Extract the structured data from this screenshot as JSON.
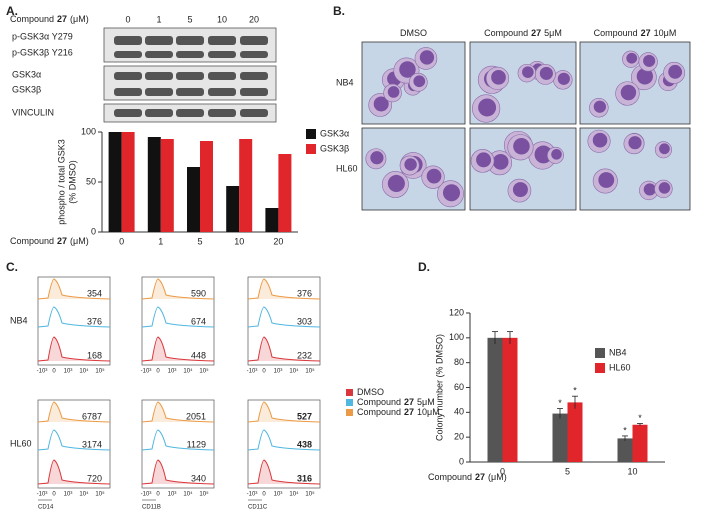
{
  "panel_labels": [
    "A.",
    "B.",
    "C.",
    "D."
  ],
  "blot": {
    "header": [
      "Compound",
      "27",
      "(μM)"
    ],
    "doses": [
      "0",
      "1",
      "5",
      "10",
      "20"
    ],
    "labels": [
      "p-GSK3α Y279",
      "p-GSK3β Y216",
      "GSK3α",
      "GSK3β",
      "VINCULIN"
    ]
  },
  "micrographs": {
    "columns": [
      [
        "DMSO"
      ],
      [
        "Compound",
        "27",
        "5μM"
      ],
      [
        "Compound",
        "27",
        "10μM"
      ]
    ],
    "rows": [
      "NB4",
      "HL60"
    ]
  },
  "flow": {
    "legend": [
      {
        "label": [
          "DMSO"
        ],
        "color": "#d9373b"
      },
      {
        "label": [
          "Compound",
          "27",
          "5μM"
        ],
        "color": "#4fb7e0"
      },
      {
        "label": [
          "Compound",
          "27",
          "10μM"
        ],
        "color": "#ec9a45"
      }
    ],
    "axis_ticks": [
      "-10³",
      "0",
      "10³",
      "10⁴",
      "10⁵"
    ],
    "markers": [
      "CD14",
      "CD11B",
      "CD11C"
    ],
    "rows": [
      {
        "name": "NB4",
        "panels": [
          {
            "values": [
              354,
              376,
              168
            ]
          },
          {
            "values": [
              590,
              674,
              448
            ]
          },
          {
            "values": [
              376,
              303,
              232
            ]
          }
        ]
      },
      {
        "name": "HL60",
        "panels": [
          {
            "values": [
              6787,
              3174,
              720
            ]
          },
          {
            "values": [
              2051,
              1129,
              340
            ]
          },
          {
            "values": [
              527,
              438,
              316
            ]
          }
        ]
      }
    ]
  },
  "chart_data": [
    {
      "type": "bar",
      "y_label": [
        "phospho / total GSK3",
        "(% DMSO)"
      ],
      "x_label": [
        "Compound",
        "27",
        "(μM)"
      ],
      "categories": [
        "0",
        "1",
        "5",
        "10",
        "20"
      ],
      "ylim": [
        0,
        100
      ],
      "yticks": [
        0,
        50,
        100
      ],
      "legend": "outside-right",
      "series": [
        {
          "name": "GSK3α",
          "color": "#111111",
          "values": [
            100,
            95,
            65,
            46,
            24
          ]
        },
        {
          "name": "GSK3β",
          "color": "#e0262b",
          "values": [
            100,
            93,
            91,
            93,
            78
          ]
        }
      ]
    },
    {
      "type": "bar",
      "y_label": [
        "Colony number (% DMSO)"
      ],
      "x_label": [
        "Compound",
        "27",
        "(μM)"
      ],
      "categories": [
        "0",
        "5",
        "10"
      ],
      "ylim": [
        0,
        120
      ],
      "yticks": [
        0,
        20,
        40,
        60,
        80,
        100,
        120
      ],
      "legend": "upper-right",
      "series": [
        {
          "name": "NB4",
          "color": "#555555",
          "values": [
            100,
            39,
            19
          ],
          "errors": [
            5,
            4,
            2
          ],
          "significance": [
            null,
            "*",
            "*"
          ]
        },
        {
          "name": "HL60",
          "color": "#e0262b",
          "values": [
            100,
            48,
            30
          ],
          "errors": [
            5,
            5,
            1
          ],
          "significance": [
            null,
            "*",
            "*"
          ]
        }
      ]
    }
  ]
}
